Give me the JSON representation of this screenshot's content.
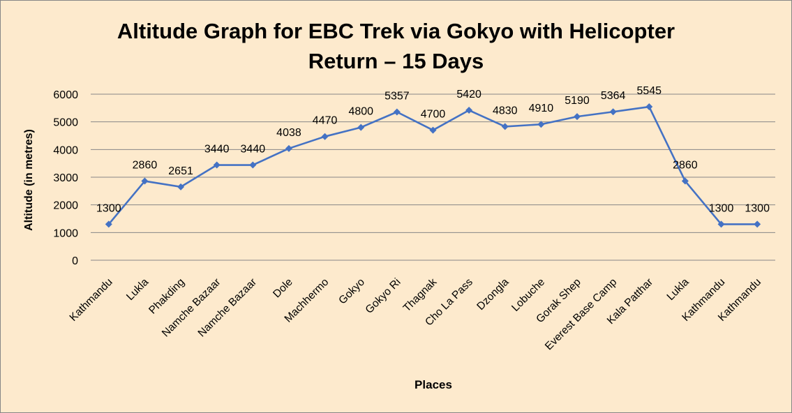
{
  "chart_data": {
    "type": "line",
    "title": "Altitude Graph for EBC Trek via Gokyo with Helicopter Return – 15 Days",
    "title_lines": [
      "Altitude Graph for EBC Trek via Gokyo with Helicopter",
      "Return – 15 Days"
    ],
    "xlabel": "Places",
    "ylabel": "Altitude (in metres)",
    "ylim": [
      0,
      6000
    ],
    "yticks": [
      0,
      1000,
      2000,
      3000,
      4000,
      5000,
      6000
    ],
    "grid": true,
    "legend": "none",
    "categories": [
      "Kathmandu",
      "Lukla",
      "Phakding",
      "Namche Bazaar",
      "Namche Bazaar",
      "Dole",
      "Machhermo",
      "Gokyo",
      "Gokyo Ri",
      "Thagnak",
      "Cho La Pass",
      "Dzongla",
      "Lobuche",
      "Gorak Shep",
      "Everest Base Camp",
      "Kala Patthar",
      "Lukla",
      "Kathmandu",
      "Kathmandu"
    ],
    "series": [
      {
        "name": "Altitude",
        "color": "#4472c4",
        "marker": "diamond",
        "values": [
          1300,
          2860,
          2651,
          3440,
          3440,
          4038,
          4470,
          4800,
          5357,
          4700,
          5420,
          4830,
          4910,
          5190,
          5364,
          5545,
          2860,
          1300,
          1300
        ]
      }
    ]
  },
  "colors": {
    "background": "#fdeacd",
    "line": "#4472c4",
    "grid": "#868686"
  }
}
